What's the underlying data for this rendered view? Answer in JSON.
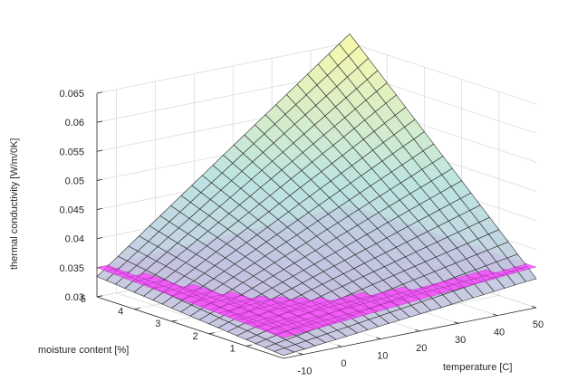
{
  "chart_data": {
    "type": "surface3d",
    "title": "",
    "xlabel": "temperature [C]",
    "ylabel": "moisture content [%]",
    "zlabel": "thermal conductivity [W/m/0K]",
    "xlim": [
      -15,
      50
    ],
    "ylim": [
      0,
      5
    ],
    "zlim": [
      0.03,
      0.065
    ],
    "xticks": [
      "-10",
      "0",
      "10",
      "20",
      "30",
      "40",
      "50"
    ],
    "yticks": [
      "1",
      "2",
      "3",
      "4",
      "5"
    ],
    "zticks": [
      "0.03",
      "0.035",
      "0.04",
      "0.045",
      "0.05",
      "0.055",
      "0.06",
      "0.065"
    ],
    "grid": true,
    "series": [
      {
        "kind": "mesh-surface",
        "color_low": "#c6bfe0",
        "color_high": "#f4f7a8",
        "corner_values": {
          "t-15_m0": 0.0305,
          "t50_m0": 0.035,
          "t-15_m5": 0.0335,
          "t50_m5": 0.0665
        }
      },
      {
        "kind": "plane",
        "color": "#ff33ff",
        "corner_values": {
          "t-15_m0": 0.0335,
          "t50_m0": 0.037,
          "t-15_m5": 0.035,
          "t50_m5": 0.037
        }
      }
    ]
  }
}
